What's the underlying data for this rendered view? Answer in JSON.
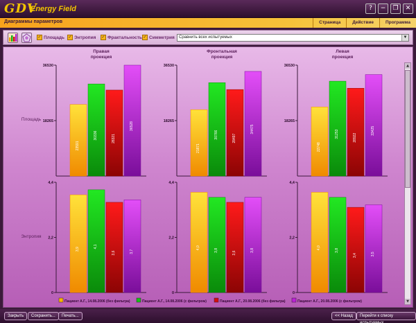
{
  "app": {
    "logo_text": "GDV",
    "name": "Energy Field"
  },
  "window_controls": {
    "help": "?",
    "minimize": "−",
    "restore": "❐",
    "close": "✕"
  },
  "header": {
    "title": "Диаграммы параметров"
  },
  "menu": {
    "items": [
      "Страница",
      "Действие",
      "Программа"
    ]
  },
  "toolbar": {
    "checkboxes": [
      {
        "label": "Площадь",
        "checked": true
      },
      {
        "label": "Энтропия",
        "checked": true
      },
      {
        "label": "Фрактальность",
        "checked": true
      },
      {
        "label": "Симметрия",
        "checked": true
      }
    ],
    "compare_select": "Сравнить всех испытуемых"
  },
  "chart_data": [
    {
      "type": "bar",
      "row": "area",
      "row_label": "Площадь",
      "ylim": [
        0,
        36530
      ],
      "y_ticks": [
        "36530",
        "18265"
      ],
      "panels": [
        {
          "title": "Правая проекция",
          "values": [
            23591,
            30336,
            28321,
            36528
          ],
          "labels": [
            "23591",
            "30336",
            "28321",
            "36528"
          ]
        },
        {
          "title": "Фронтальная проекция",
          "values": [
            21871,
            30766,
            28497,
            34475
          ],
          "labels": [
            "21871",
            "30766",
            "28497",
            "34475"
          ]
        },
        {
          "title": "Левая проекция",
          "values": [
            22748,
            31253,
            28922,
            33425
          ],
          "labels": [
            "22748",
            "31253",
            "28922",
            "33425"
          ]
        }
      ]
    },
    {
      "type": "bar",
      "row": "entropy",
      "row_label": "Энтропия",
      "ylim": [
        0,
        4.4
      ],
      "y_ticks": [
        "4,4",
        "2,2",
        "0"
      ],
      "panels": [
        {
          "values": [
            3.9,
            4.1,
            3.6,
            3.7
          ],
          "labels": [
            "3,9",
            "4,1",
            "3,6",
            "3,7"
          ]
        },
        {
          "values": [
            4.0,
            3.8,
            3.6,
            3.8
          ],
          "labels": [
            "4,0",
            "3,8",
            "3,6",
            "3,8"
          ]
        },
        {
          "values": [
            4.0,
            3.8,
            3.4,
            3.5
          ],
          "labels": [
            "4,0",
            "3,8",
            "3,4",
            "3,5"
          ]
        }
      ]
    }
  ],
  "legend": [
    {
      "label": "Пациент А.Г., 14.08.2006 (без фильтра)",
      "color": "#f5b800"
    },
    {
      "label": "Пациент А.Г., 14.08.2006 (с фильтром)",
      "color": "#16c016"
    },
    {
      "label": "Пациент А.Г., 20.08.2006 (без фильтра)",
      "color": "#d40e0e"
    },
    {
      "label": "Пациент А.Г., 20.08.2006 (с фильтром)",
      "color": "#b923d4"
    }
  ],
  "series_colors": [
    {
      "light": "#ffe23a",
      "dark": "#f08a00"
    },
    {
      "light": "#22e822",
      "dark": "#0a8a0a"
    },
    {
      "light": "#ff1a1a",
      "dark": "#8c0404"
    },
    {
      "light": "#e34ef8",
      "dark": "#7a0e9a"
    }
  ],
  "bottom": {
    "close": "Закрыть",
    "save": "Сохранить...",
    "print": "Печать...",
    "back": "<< Назад",
    "to_list": "Перейти к списку испытуемых"
  }
}
